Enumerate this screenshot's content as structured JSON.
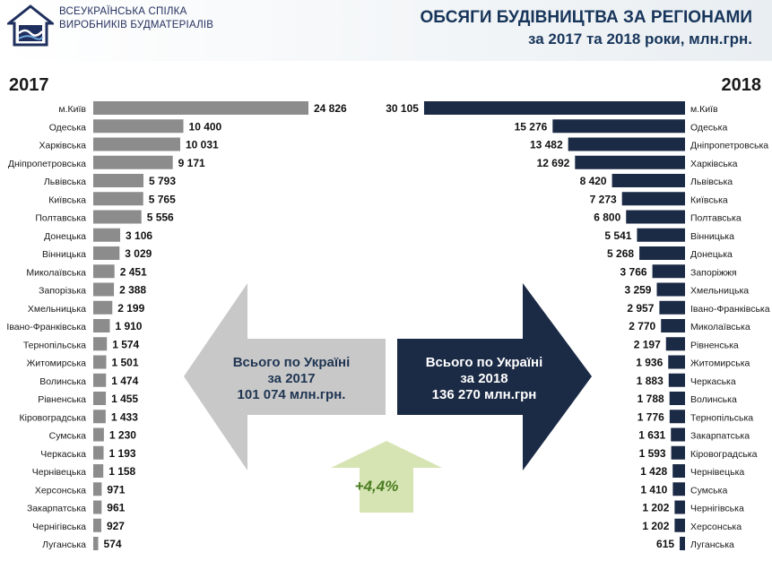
{
  "header": {
    "org_line1": "ВСЕУКРАЇНСЬКА СПІЛКА",
    "org_line2": "ВИРОБНИКІВ БУДМАТЕРІАЛІВ",
    "title_line1": "ОБСЯГИ БУДІВНИЦТВА ЗА РЕГІОНАМИ",
    "title_line2": "за 2017 та 2018 роки, млн.грн."
  },
  "colors": {
    "bars_2017": "#8c8c8c",
    "bars_2018": "#1b2a45",
    "arrow_2017": "#c8c8c8",
    "arrow_2018": "#1b2a45",
    "arrow_growth": "#d6e4b4"
  },
  "totals": {
    "y2017_line1": "Всього по Україні",
    "y2017_line2": "за 2017",
    "y2017_line3": "101 074 млн.грн.",
    "y2018_line1": "Всього по Україні",
    "y2018_line2": "за 2018",
    "y2018_line3": "136 270 млн.грн",
    "growth": "+4,4%"
  },
  "chart_data": [
    {
      "type": "bar",
      "title": "2017",
      "orientation": "horizontal",
      "categories": [
        "м.Київ",
        "Одеська",
        "Харківська",
        "Дніпропетровська",
        "Львівська",
        "Київська",
        "Полтавська",
        "Донецька",
        "Вінницька",
        "Миколаївська",
        "Запорізька",
        "Хмельницька",
        "Івано-Франківська",
        "Тернопільська",
        "Житомирська",
        "Волинська",
        "Рівненська",
        "Кіровоградська",
        "Сумська",
        "Черкаська",
        "Чернівецька",
        "Херсонська",
        "Закарпатська",
        "Чернігівська",
        "Луганська"
      ],
      "values": [
        24826,
        10400,
        10031,
        9171,
        5793,
        5765,
        5556,
        3106,
        3029,
        2451,
        2388,
        2199,
        1910,
        1574,
        1501,
        1474,
        1455,
        1433,
        1230,
        1193,
        1158,
        971,
        961,
        927,
        574
      ],
      "value_labels": [
        "24 826",
        "10 400",
        "10 031",
        "9 171",
        "5 793",
        "5 765",
        "5 556",
        "3 106",
        "3 029",
        "2 451",
        "2 388",
        "2 199",
        "1 910",
        "1 574",
        "1 501",
        "1 474",
        "1 455",
        "1 433",
        "1 230",
        "1 193",
        "1 158",
        "971",
        "961",
        "927",
        "574"
      ]
    },
    {
      "type": "bar",
      "title": "2018",
      "orientation": "horizontal",
      "categories": [
        "м.Київ",
        "Одеська",
        "Дніпропетровська",
        "Харківська",
        "Львівська",
        "Київська",
        "Полтавська",
        "Вінницька",
        "Донецька",
        "Запоріжжя",
        "Хмельницька",
        "Івано-Франківська",
        "Миколаївська",
        "Рівненська",
        "Житомирська",
        "Черкаська",
        "Волинська",
        "Тернопільська",
        "Закарпатська",
        "Кіровоградська",
        "Чернівецька",
        "Сумська",
        "Чернігівська",
        "Херсонська",
        "Луганська"
      ],
      "values": [
        30105,
        15276,
        13482,
        12692,
        8420,
        7273,
        6800,
        5541,
        5268,
        3766,
        3259,
        2957,
        2770,
        2197,
        1936,
        1883,
        1788,
        1776,
        1631,
        1593,
        1428,
        1410,
        1202,
        1202,
        615
      ],
      "value_labels": [
        "30 105",
        "15 276",
        "13 482",
        "12 692",
        "8 420",
        "7 273",
        "6 800",
        "5 541",
        "5 268",
        "3 766",
        "3 259",
        "2 957",
        "2 770",
        "2 197",
        "1 936",
        "1 883",
        "1 788",
        "1 776",
        "1 631",
        "1 593",
        "1 428",
        "1 410",
        "1 202",
        "1 202",
        "615"
      ]
    }
  ]
}
